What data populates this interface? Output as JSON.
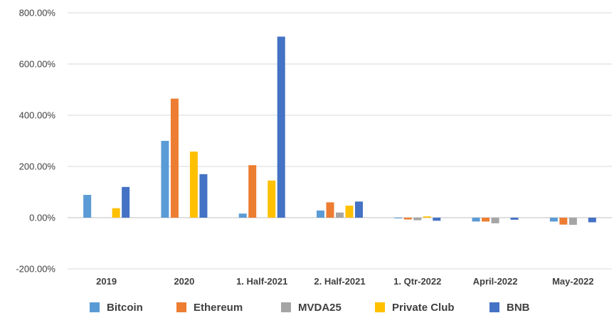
{
  "chart_data": {
    "type": "bar",
    "title": "",
    "xlabel": "",
    "ylabel": "",
    "ylim": [
      -200,
      800
    ],
    "yticks": [
      -200,
      0,
      200,
      400,
      600,
      800
    ],
    "ytick_labels": [
      "-200.00%",
      "0.00%",
      "200.00%",
      "400.00%",
      "600.00%",
      "800.00%"
    ],
    "grid": "horizontal",
    "legend_position": "bottom",
    "categories": [
      "2019",
      "2020",
      "1. Half-2021",
      "2. Half-2021",
      "1. Qtr-2022",
      "April-2022",
      "May-2022"
    ],
    "series": [
      {
        "name": "Bitcoin",
        "color": "#5B9BD5",
        "values": [
          89,
          300,
          16,
          28,
          -2,
          -15,
          -15
        ]
      },
      {
        "name": "Ethereum",
        "color": "#ED7D31",
        "values": [
          0,
          465,
          205,
          60,
          -7,
          -15,
          -27
        ]
      },
      {
        "name": "MVDA25",
        "color": "#A5A5A5",
        "values": [
          0,
          0,
          0,
          20,
          -10,
          -22,
          -28
        ]
      },
      {
        "name": "Private Club",
        "color": "#FFC000",
        "values": [
          37,
          258,
          145,
          47,
          5,
          0,
          0
        ]
      },
      {
        "name": "BNB",
        "color": "#4472C4",
        "values": [
          120,
          170,
          707,
          63,
          -12,
          -8,
          -18
        ]
      }
    ]
  }
}
